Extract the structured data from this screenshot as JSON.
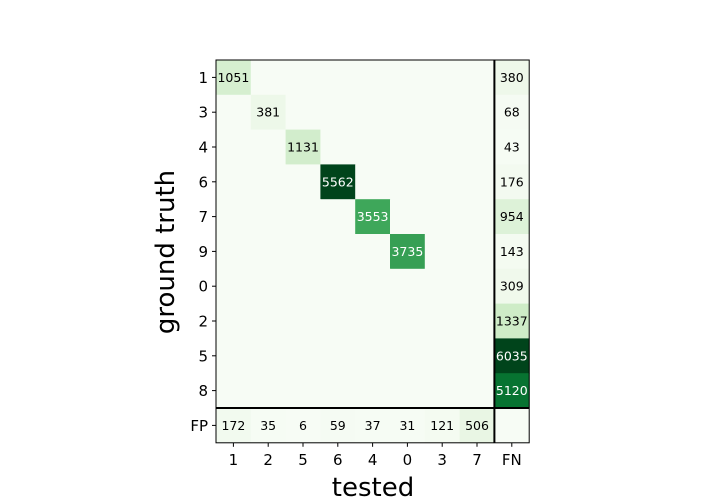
{
  "chart_data": {
    "type": "heatmap",
    "title": "",
    "xlabel": "tested",
    "ylabel": "ground truth",
    "colormap": "Greens",
    "x_categories": [
      "1",
      "2",
      "5",
      "6",
      "4",
      "0",
      "3",
      "7",
      "FN"
    ],
    "y_categories": [
      "1",
      "3",
      "4",
      "6",
      "7",
      "9",
      "0",
      "2",
      "5",
      "8",
      "FP"
    ],
    "main_cells": [
      {
        "row": "1",
        "col": "1",
        "value": 1051
      },
      {
        "row": "3",
        "col": "2",
        "value": 381
      },
      {
        "row": "4",
        "col": "5",
        "value": 1131
      },
      {
        "row": "6",
        "col": "6",
        "value": 5562
      },
      {
        "row": "7",
        "col": "4",
        "value": 3553
      },
      {
        "row": "9",
        "col": "0",
        "value": 3735
      }
    ],
    "fn_column": {
      "rows": [
        "1",
        "3",
        "4",
        "6",
        "7",
        "9",
        "0",
        "2",
        "5",
        "8"
      ],
      "values": [
        380,
        68,
        43,
        176,
        954,
        143,
        309,
        1337,
        6035,
        5120
      ]
    },
    "fp_row": {
      "cols": [
        "1",
        "2",
        "5",
        "6",
        "4",
        "0",
        "3",
        "7"
      ],
      "values": [
        172,
        35,
        6,
        59,
        37,
        31,
        121,
        506
      ]
    },
    "grid": false
  }
}
